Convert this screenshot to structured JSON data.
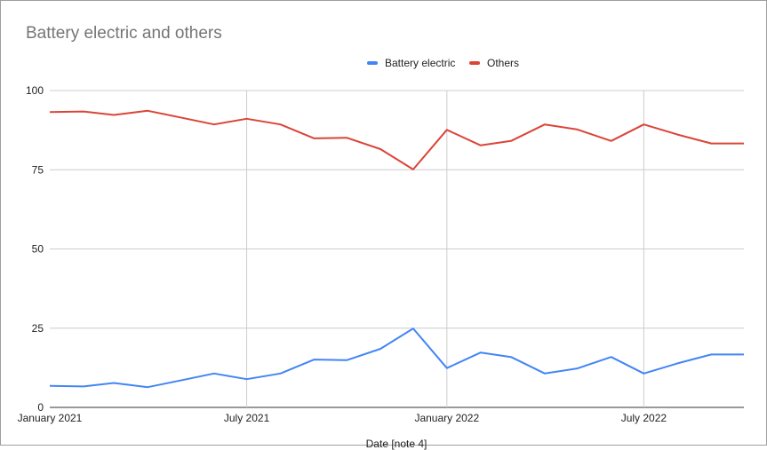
{
  "chart_data": {
    "type": "line",
    "title": "Battery electric and others",
    "xlabel": "Date [note 4]",
    "ylabel": "",
    "ylim": [
      0,
      100
    ],
    "yticks": [
      0,
      25,
      50,
      75,
      100
    ],
    "xticks": [
      {
        "label": "January 2021",
        "date": "2021-01-01"
      },
      {
        "label": "July 2021",
        "date": "2021-07-01"
      },
      {
        "label": "January 2022",
        "date": "2022-01-01"
      },
      {
        "label": "July 2022",
        "date": "2022-07-01"
      }
    ],
    "xlim": [
      "2021-01-01",
      "2022-10-01"
    ],
    "grid": true,
    "legend_position": "top",
    "x": [
      "2021-01-01",
      "2021-02-01",
      "2021-03-01",
      "2021-04-01",
      "2021-05-01",
      "2021-06-01",
      "2021-07-01",
      "2021-08-01",
      "2021-09-01",
      "2021-10-01",
      "2021-11-01",
      "2021-12-01",
      "2022-01-01",
      "2022-02-01",
      "2022-03-01",
      "2022-04-01",
      "2022-05-01",
      "2022-06-01",
      "2022-07-01",
      "2022-08-01",
      "2022-09-01",
      "2022-10-01"
    ],
    "series": [
      {
        "name": "Battery electric",
        "color": "#4285f4",
        "values": [
          6.8,
          6.6,
          7.7,
          6.4,
          8.5,
          10.7,
          8.9,
          10.7,
          15.1,
          14.9,
          18.5,
          24.9,
          12.4,
          17.3,
          15.9,
          10.7,
          12.3,
          15.9,
          10.7,
          13.9,
          16.7,
          16.7
        ]
      },
      {
        "name": "Others",
        "color": "#db4437",
        "values": [
          93.2,
          93.4,
          92.3,
          93.6,
          91.5,
          89.3,
          91.1,
          89.3,
          84.9,
          85.1,
          81.5,
          75.1,
          87.6,
          82.7,
          84.1,
          89.3,
          87.7,
          84.1,
          89.3,
          86.1,
          83.3,
          83.3
        ]
      }
    ]
  }
}
